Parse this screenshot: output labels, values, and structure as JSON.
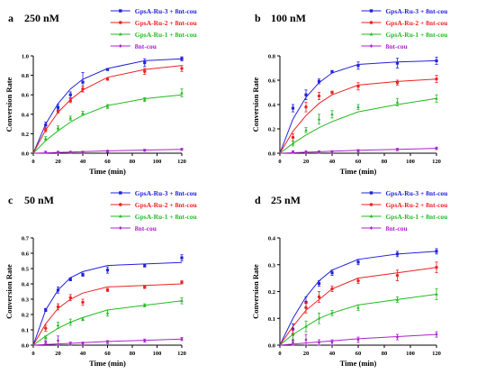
{
  "chart_data": [
    {
      "type": "line",
      "panel_letter": "a",
      "title": "250 nM",
      "xlabel": "Time (min)",
      "ylabel": "Conversion Rate",
      "xlim": [
        0,
        120
      ],
      "ylim": [
        0,
        1.0
      ],
      "xticks": [
        0,
        20,
        40,
        60,
        80,
        100,
        120
      ],
      "yticks": [
        0.0,
        0.2,
        0.4,
        0.6,
        0.8,
        1.0
      ],
      "ytick_labels": [
        "0.0",
        "0.2",
        "0.4",
        "0.6",
        "0.8",
        "1.0"
      ],
      "grid": false,
      "legend_position": "top-right",
      "series": [
        {
          "name": "GpsA-Ru-3 + 8nt-cou",
          "color": "#2222dd",
          "x": [
            10,
            20,
            30,
            40,
            60,
            90,
            120
          ],
          "y": [
            0.29,
            0.47,
            0.6,
            0.73,
            0.86,
            0.93,
            0.97
          ],
          "err": [
            0.03,
            0.03,
            0.03,
            0.1,
            0.01,
            0.04,
            0.02
          ],
          "fit": [
            0.0,
            0.3,
            0.51,
            0.66,
            0.76,
            0.87,
            0.95,
            0.97
          ]
        },
        {
          "name": "GpsA-Ru-2 + 8nt-cou",
          "color": "#ee2222",
          "x": [
            10,
            20,
            30,
            40,
            60,
            90,
            120
          ],
          "y": [
            0.24,
            0.43,
            0.54,
            0.66,
            0.76,
            0.84,
            0.87
          ],
          "err": [
            0.02,
            0.02,
            0.02,
            0.03,
            0.01,
            0.03,
            0.03
          ],
          "fit": [
            0.0,
            0.24,
            0.42,
            0.55,
            0.65,
            0.78,
            0.86,
            0.9
          ]
        },
        {
          "name": "GpsA-Ru-1 + 8nt-cou",
          "color": "#22bb22",
          "x": [
            10,
            20,
            30,
            40,
            60,
            90,
            120
          ],
          "y": [
            0.15,
            0.26,
            0.36,
            0.41,
            0.48,
            0.55,
            0.62
          ],
          "err": [
            0.02,
            0.02,
            0.02,
            0.02,
            0.02,
            0.02,
            0.04
          ],
          "fit": [
            0.0,
            0.13,
            0.23,
            0.32,
            0.39,
            0.49,
            0.56,
            0.6
          ]
        },
        {
          "name": "8nt-cou",
          "color": "#aa22cc",
          "x": [
            10,
            20,
            30,
            40,
            60,
            90,
            120
          ],
          "y": [
            0.01,
            0.01,
            0.01,
            0.01,
            0.02,
            0.03,
            0.04
          ],
          "err": [
            0.01,
            0.01,
            0.01,
            0.01,
            0.01,
            0.01,
            0.01
          ],
          "fit": [
            0.0,
            0.004,
            0.008,
            0.012,
            0.016,
            0.024,
            0.032,
            0.04
          ]
        }
      ]
    },
    {
      "type": "line",
      "panel_letter": "b",
      "title": "100 nM",
      "xlabel": "Time (min)",
      "ylabel": "Conversion Rate",
      "xlim": [
        0,
        120
      ],
      "ylim": [
        0,
        0.8
      ],
      "xticks": [
        0,
        20,
        40,
        60,
        80,
        100,
        120
      ],
      "yticks": [
        0.0,
        0.2,
        0.4,
        0.6,
        0.8
      ],
      "ytick_labels": [
        "0.0",
        "0.2",
        "0.4",
        "0.6",
        "0.8"
      ],
      "grid": false,
      "legend_position": "top-right",
      "series": [
        {
          "name": "GpsA-Ru-3 + 8nt-cou",
          "color": "#2222dd",
          "x": [
            10,
            20,
            30,
            40,
            60,
            90,
            120
          ],
          "y": [
            0.37,
            0.48,
            0.59,
            0.67,
            0.72,
            0.74,
            0.76
          ],
          "err": [
            0.03,
            0.04,
            0.02,
            0.01,
            0.03,
            0.04,
            0.03
          ],
          "fit": [
            0.0,
            0.28,
            0.46,
            0.58,
            0.66,
            0.73,
            0.75,
            0.76
          ]
        },
        {
          "name": "GpsA-Ru-2 + 8nt-cou",
          "color": "#ee2222",
          "x": [
            10,
            20,
            30,
            40,
            60,
            90,
            120
          ],
          "y": [
            0.13,
            0.38,
            0.47,
            0.5,
            0.55,
            0.58,
            0.61
          ],
          "err": [
            0.03,
            0.04,
            0.03,
            0.01,
            0.03,
            0.02,
            0.03
          ],
          "fit": [
            0.0,
            0.18,
            0.31,
            0.41,
            0.48,
            0.56,
            0.59,
            0.61
          ]
        },
        {
          "name": "GpsA-Ru-1 + 8nt-cou",
          "color": "#22bb22",
          "x": [
            10,
            20,
            30,
            40,
            60,
            90,
            120
          ],
          "y": [
            0.08,
            0.19,
            0.28,
            0.32,
            0.38,
            0.42,
            0.45
          ],
          "err": [
            0.02,
            0.02,
            0.04,
            0.03,
            0.02,
            0.03,
            0.03
          ],
          "fit": [
            0.0,
            0.08,
            0.15,
            0.21,
            0.26,
            0.34,
            0.4,
            0.45
          ]
        },
        {
          "name": "8nt-cou",
          "color": "#aa22cc",
          "x": [
            10,
            20,
            30,
            40,
            60,
            90,
            120
          ],
          "y": [
            0.01,
            0.01,
            0.01,
            0.01,
            0.02,
            0.03,
            0.04
          ],
          "err": [
            0.01,
            0.01,
            0.01,
            0.01,
            0.01,
            0.01,
            0.01
          ],
          "fit": [
            0.0,
            0.004,
            0.008,
            0.012,
            0.016,
            0.024,
            0.032,
            0.04
          ]
        }
      ]
    },
    {
      "type": "line",
      "panel_letter": "c",
      "title": "50 nM",
      "xlabel": "Time (min)",
      "ylabel": "Conversion Rate",
      "xlim": [
        0,
        120
      ],
      "ylim": [
        0,
        0.7
      ],
      "xticks": [
        0,
        20,
        40,
        60,
        80,
        100,
        120
      ],
      "yticks": [
        0.0,
        0.1,
        0.2,
        0.3,
        0.4,
        0.5,
        0.6,
        0.7
      ],
      "ytick_labels": [
        "0.0",
        "0.1",
        "0.2",
        "0.3",
        "0.4",
        "0.5",
        "0.6",
        "0.7"
      ],
      "grid": false,
      "legend_position": "top-right",
      "series": [
        {
          "name": "GpsA-Ru-3 + 8nt-cou",
          "color": "#2222dd",
          "x": [
            10,
            20,
            30,
            40,
            60,
            90,
            120
          ],
          "y": [
            0.23,
            0.36,
            0.43,
            0.46,
            0.49,
            0.52,
            0.57
          ],
          "err": [
            0.01,
            0.02,
            0.01,
            0.01,
            0.02,
            0.01,
            0.02
          ],
          "fit": [
            0.0,
            0.23,
            0.36,
            0.44,
            0.48,
            0.52,
            0.53,
            0.54
          ]
        },
        {
          "name": "GpsA-Ru-2 + 8nt-cou",
          "color": "#ee2222",
          "x": [
            10,
            20,
            30,
            40,
            60,
            90,
            120
          ],
          "y": [
            0.11,
            0.25,
            0.31,
            0.28,
            0.36,
            0.38,
            0.41
          ],
          "err": [
            0.02,
            0.02,
            0.02,
            0.02,
            0.01,
            0.01,
            0.01
          ],
          "fit": [
            0.0,
            0.14,
            0.24,
            0.3,
            0.34,
            0.38,
            0.39,
            0.4
          ]
        },
        {
          "name": "GpsA-Ru-1 + 8nt-cou",
          "color": "#22bb22",
          "x": [
            10,
            20,
            30,
            40,
            60,
            90,
            120
          ],
          "y": [
            0.05,
            0.13,
            0.15,
            0.17,
            0.21,
            0.26,
            0.29
          ],
          "err": [
            0.01,
            0.02,
            0.02,
            0.01,
            0.02,
            0.01,
            0.02
          ],
          "fit": [
            0.0,
            0.06,
            0.11,
            0.15,
            0.18,
            0.23,
            0.26,
            0.29
          ]
        },
        {
          "name": "8nt-cou",
          "color": "#aa22cc",
          "x": [
            10,
            20,
            30,
            40,
            60,
            90,
            120
          ],
          "y": [
            0.02,
            0.03,
            0.01,
            0.01,
            0.02,
            0.03,
            0.04
          ],
          "err": [
            0.01,
            0.03,
            0.01,
            0.01,
            0.01,
            0.01,
            0.01
          ],
          "fit": [
            0.0,
            0.004,
            0.008,
            0.012,
            0.016,
            0.024,
            0.032,
            0.04
          ]
        }
      ]
    },
    {
      "type": "line",
      "panel_letter": "d",
      "title": "25 nM",
      "xlabel": "Time (min)",
      "ylabel": "Conversion Rate",
      "xlim": [
        0,
        120
      ],
      "ylim": [
        0,
        0.4
      ],
      "xticks": [
        0,
        20,
        40,
        60,
        80,
        100,
        120
      ],
      "yticks": [
        0.0,
        0.1,
        0.2,
        0.3,
        0.4
      ],
      "ytick_labels": [
        "0.0",
        "0.1",
        "0.2",
        "0.3",
        "0.4"
      ],
      "grid": false,
      "legend_position": "top-right",
      "series": [
        {
          "name": "GpsA-Ru-3 + 8nt-cou",
          "color": "#2222dd",
          "x": [
            10,
            20,
            30,
            40,
            60,
            90,
            120
          ],
          "y": [
            0.06,
            0.16,
            0.23,
            0.27,
            0.31,
            0.34,
            0.35
          ],
          "err": [
            0.02,
            0.02,
            0.01,
            0.01,
            0.01,
            0.01,
            0.01
          ],
          "fit": [
            0.0,
            0.1,
            0.18,
            0.24,
            0.28,
            0.32,
            0.34,
            0.35
          ]
        },
        {
          "name": "GpsA-Ru-2 + 8nt-cou",
          "color": "#ee2222",
          "x": [
            10,
            20,
            30,
            40,
            60,
            90,
            120
          ],
          "y": [
            0.04,
            0.14,
            0.18,
            0.21,
            0.24,
            0.26,
            0.29
          ],
          "err": [
            0.02,
            0.02,
            0.02,
            0.01,
            0.01,
            0.02,
            0.02
          ],
          "fit": [
            0.0,
            0.07,
            0.13,
            0.17,
            0.21,
            0.25,
            0.27,
            0.29
          ]
        },
        {
          "name": "GpsA-Ru-1 + 8nt-cou",
          "color": "#22bb22",
          "x": [
            10,
            20,
            30,
            40,
            60,
            90,
            120
          ],
          "y": [
            0.02,
            0.07,
            0.1,
            0.12,
            0.14,
            0.17,
            0.19
          ],
          "err": [
            0.02,
            0.02,
            0.02,
            0.01,
            0.01,
            0.01,
            0.02
          ],
          "fit": [
            0.0,
            0.04,
            0.07,
            0.1,
            0.12,
            0.15,
            0.17,
            0.19
          ]
        },
        {
          "name": "8nt-cou",
          "color": "#aa22cc",
          "x": [
            10,
            20,
            30,
            40,
            60,
            90,
            120
          ],
          "y": [
            0.01,
            0.02,
            0.01,
            0.01,
            0.02,
            0.03,
            0.04
          ],
          "err": [
            0.01,
            0.02,
            0.01,
            0.01,
            0.01,
            0.01,
            0.01
          ],
          "fit": [
            0.0,
            0.004,
            0.008,
            0.012,
            0.016,
            0.024,
            0.032,
            0.04
          ]
        }
      ]
    }
  ]
}
